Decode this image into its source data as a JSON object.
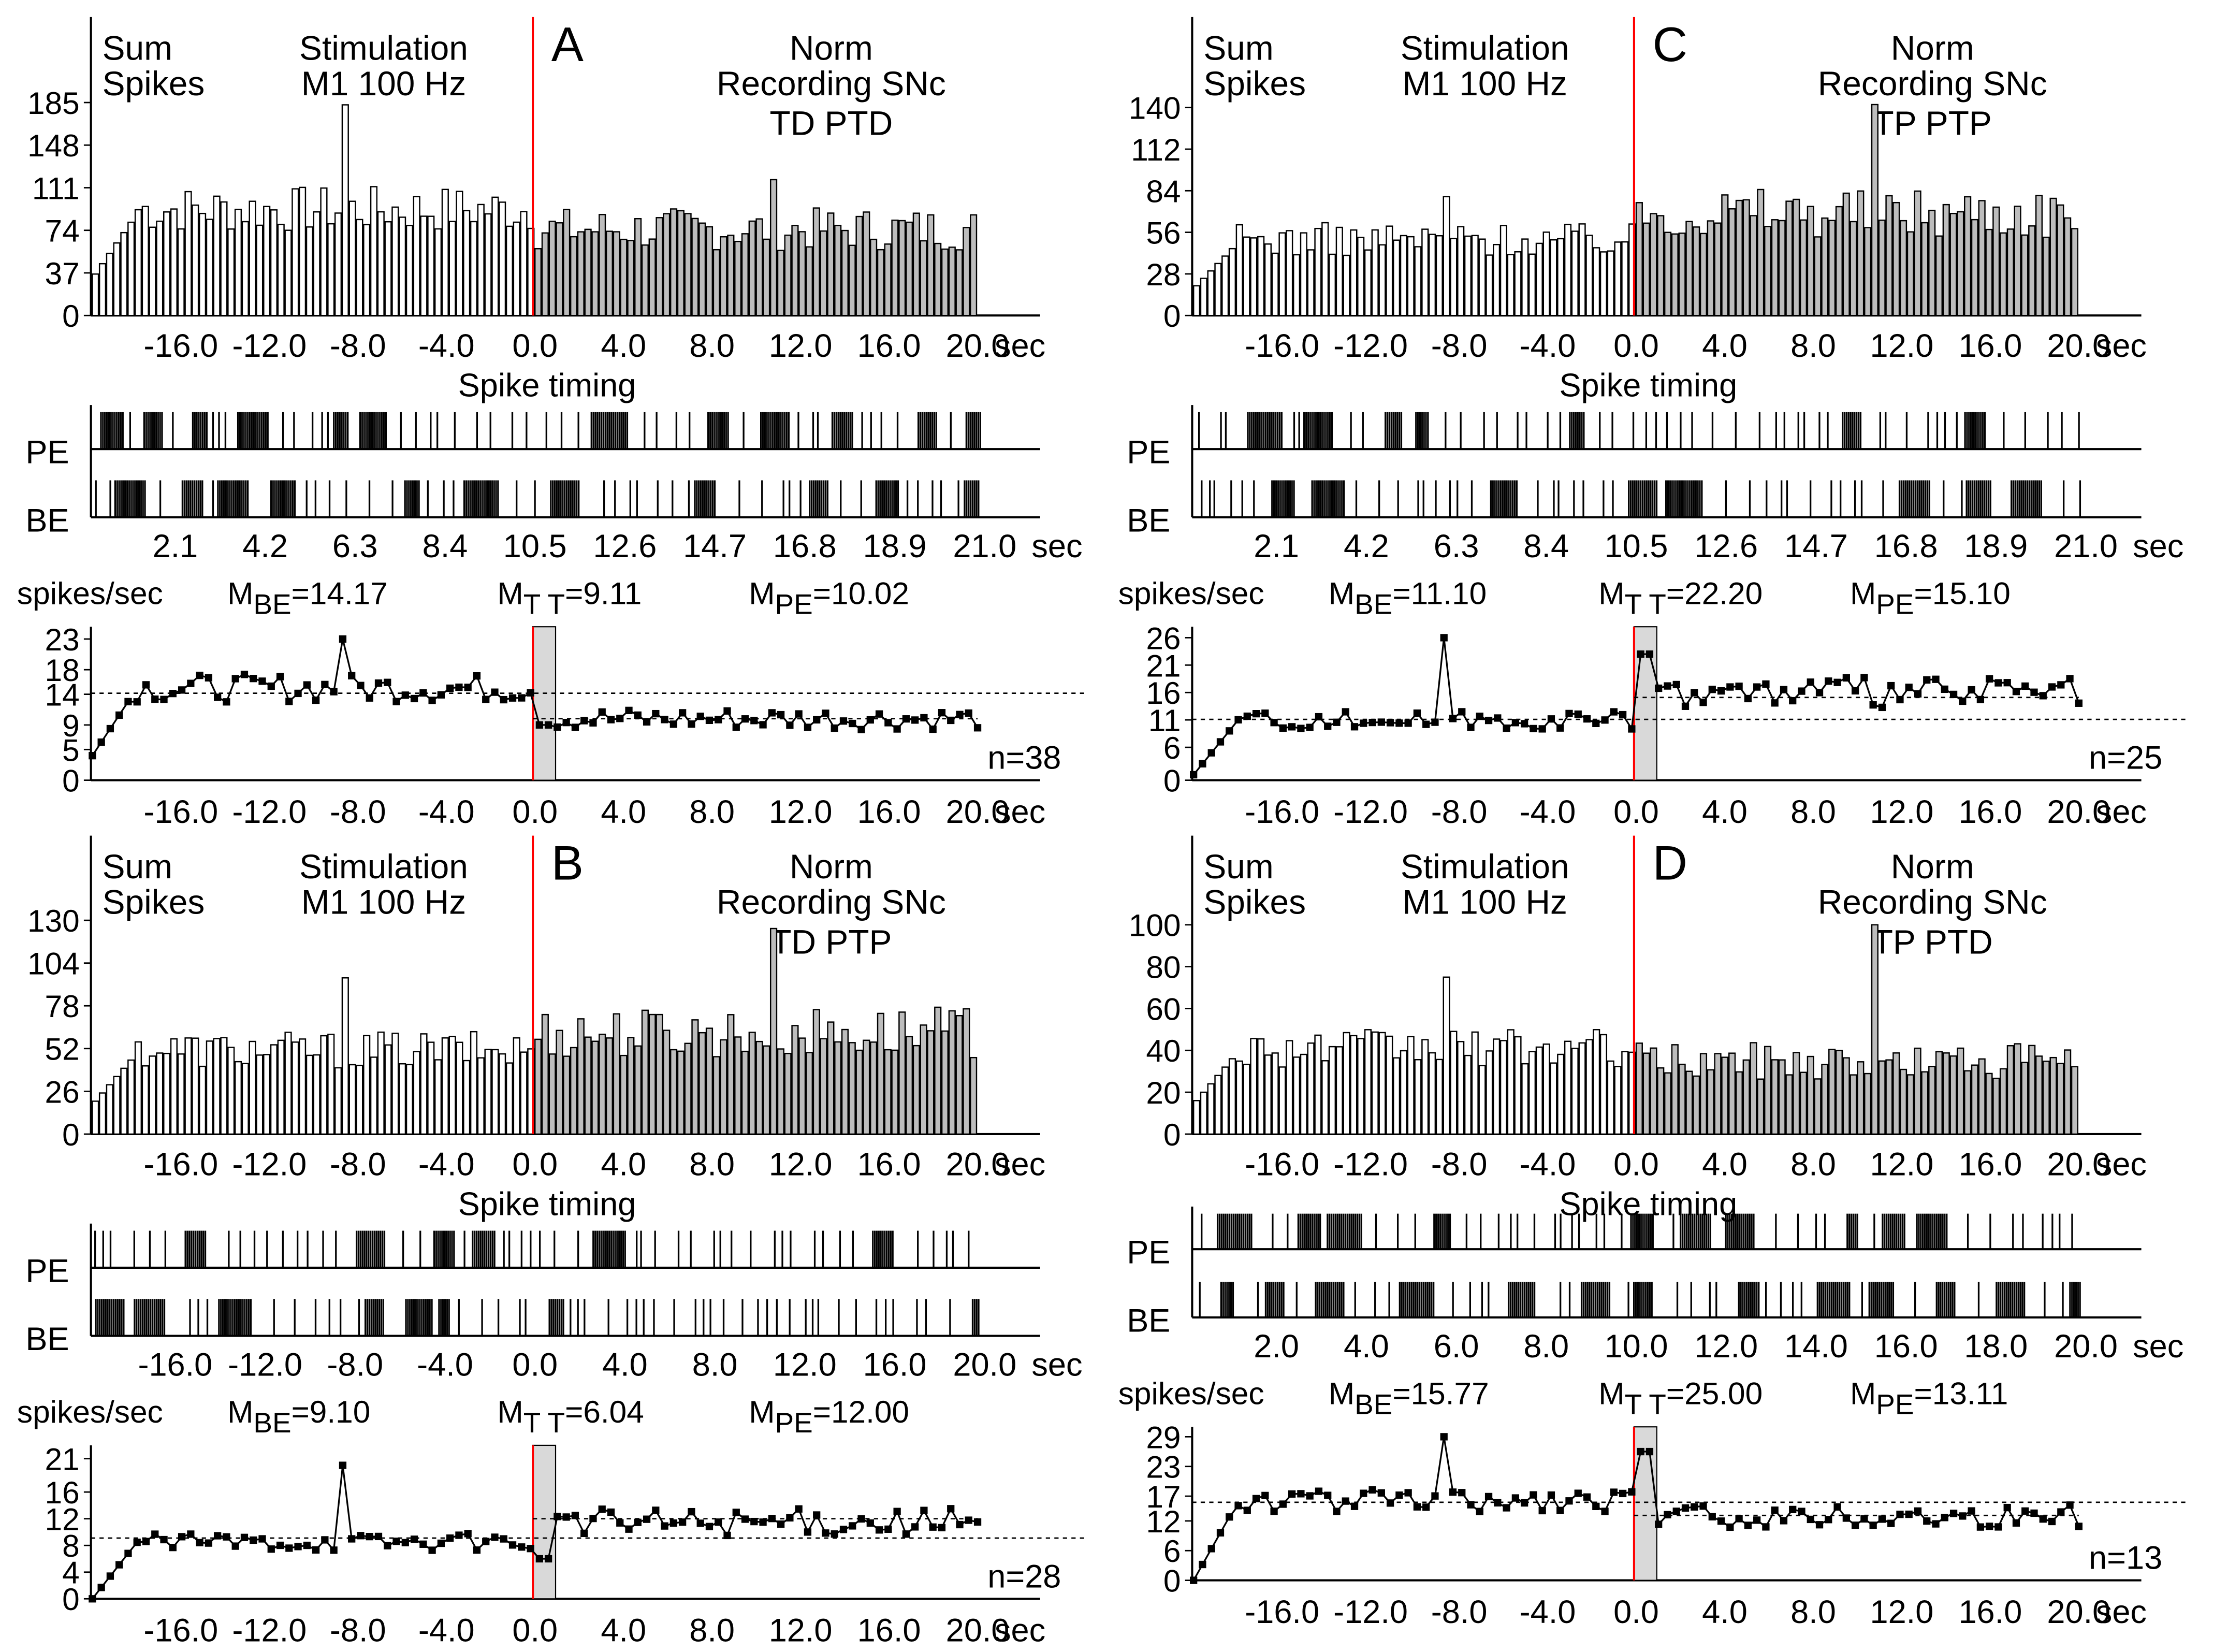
{
  "units": {
    "sec": "sec",
    "spikes_per_sec": "spikes/sec",
    "spike_timing": "Spike timing",
    "pe": "PE",
    "be": "BE"
  },
  "header": {
    "sum": "Sum",
    "spikes": "Spikes",
    "stimulation": "Stimulation",
    "stim_site": "M1 100 Hz",
    "norm": "Norm",
    "recording": "Recording SNc"
  },
  "colors": {
    "stimulus_line": "#ff0000",
    "bars": "#000000",
    "shade": "#d9d9d9"
  },
  "panels": [
    {
      "letter": "A",
      "condition": "TD PTD",
      "stats": {
        "be": "M",
        "be_sub": "BE",
        "be_val": "=14.17",
        "tt": "M",
        "tt_sub": "T T",
        "tt_val": "=9.11",
        "pe": "M",
        "pe_sub": "PE",
        "pe_val": "=10.02"
      },
      "n_label": "n=38",
      "histogram": {
        "yticks": [
          "0",
          "37",
          "74",
          "111",
          "148",
          "185"
        ],
        "ymax": 200,
        "xticks": [
          "-16.0",
          "-12.0",
          "-8.0",
          "-4.0",
          "0.0",
          "4.0",
          "8.0",
          "12.0",
          "16.0",
          "20.0"
        ],
        "pre_level": 90,
        "pre_peak": 183,
        "post_level": 75,
        "post_peak": 118
      },
      "raster": {
        "xticks": [
          "2.1",
          "4.2",
          "6.3",
          "8.4",
          "10.5",
          "12.6",
          "14.7",
          "16.8",
          "18.9",
          "21.0"
        ]
      },
      "rate": {
        "yticks": [
          "0",
          "5",
          "9",
          "14",
          "18",
          "23"
        ],
        "ymax": 25,
        "xticks": [
          "-16.0",
          "-12.0",
          "-8.0",
          "-4.0",
          "0.0",
          "4.0",
          "8.0",
          "12.0",
          "16.0",
          "20.0"
        ],
        "mean_pre": 14.17,
        "mean_post": 10.02,
        "start": 4,
        "pre_level": 15,
        "post_level": 10,
        "peak": 23,
        "tt_level": 9
      }
    },
    {
      "letter": "B",
      "condition": "TD PTP",
      "stats": {
        "be": "M",
        "be_sub": "BE",
        "be_val": "=9.10",
        "tt": "M",
        "tt_sub": "T T",
        "tt_val": "=6.04",
        "pe": "M",
        "pe_sub": "PE",
        "pe_val": "=12.00"
      },
      "n_label": "n=28",
      "histogram": {
        "yticks": [
          "0",
          "26",
          "52",
          "78",
          "104",
          "130"
        ],
        "ymax": 140,
        "xticks": [
          "-16.0",
          "-12.0",
          "-8.0",
          "-4.0",
          "0.0",
          "4.0",
          "8.0",
          "12.0",
          "16.0",
          "20.0"
        ],
        "pre_level": 50,
        "pre_peak": 95,
        "post_level": 62,
        "post_peak": 125
      },
      "raster": {
        "xticks": [
          "-16.0",
          "-12.0",
          "-8.0",
          "-4.0",
          "0.0",
          "4.0",
          "8.0",
          "12.0",
          "16.0",
          "20.0"
        ]
      },
      "rate": {
        "yticks": [
          "0",
          "4",
          "8",
          "12",
          "16",
          "21"
        ],
        "ymax": 23,
        "xticks": [
          "-16.0",
          "-12.0",
          "-8.0",
          "-4.0",
          "0.0",
          "4.0",
          "8.0",
          "12.0",
          "16.0",
          "20.0"
        ],
        "mean_pre": 9.1,
        "mean_post": 12.0,
        "start": 0,
        "pre_level": 8.5,
        "post_level": 11.5,
        "peak": 20,
        "tt_level": 6
      }
    },
    {
      "letter": "C",
      "condition": "TP PTP",
      "stats": {
        "be": "M",
        "be_sub": "BE",
        "be_val": "=11.10",
        "tt": "M",
        "tt_sub": "T T",
        "tt_val": "=22.20",
        "pe": "M",
        "pe_sub": "PE",
        "pe_val": "=15.10"
      },
      "n_label": "n=25",
      "histogram": {
        "yticks": [
          "0",
          "28",
          "56",
          "84",
          "112",
          "140"
        ],
        "ymax": 155,
        "xticks": [
          "-16.0",
          "-12.0",
          "-8.0",
          "-4.0",
          "0.0",
          "4.0",
          "8.0",
          "12.0",
          "16.0",
          "20.0"
        ],
        "pre_level": 50,
        "pre_peak": 80,
        "post_level": 70,
        "post_peak": 142
      },
      "raster": {
        "xticks": [
          "2.1",
          "4.2",
          "6.3",
          "8.4",
          "10.5",
          "12.6",
          "14.7",
          "16.8",
          "18.9",
          "21.0"
        ]
      },
      "rate": {
        "yticks": [
          "0",
          "6",
          "11",
          "16",
          "21",
          "26"
        ],
        "ymax": 28,
        "xticks": [
          "-16.0",
          "-12.0",
          "-8.0",
          "-4.0",
          "0.0",
          "4.0",
          "8.0",
          "12.0",
          "16.0",
          "20.0"
        ],
        "mean_pre": 11.1,
        "mean_post": 15.1,
        "start": 1,
        "pre_level": 11,
        "post_level": 16,
        "peak": 26,
        "tt_level": 23
      }
    },
    {
      "letter": "D",
      "condition": "TP PTD",
      "stats": {
        "be": "M",
        "be_sub": "BE",
        "be_val": "=15.77",
        "tt": "M",
        "tt_sub": "T T",
        "tt_val": "=25.00",
        "pe": "M",
        "pe_sub": "PE",
        "pe_val": "=13.11"
      },
      "n_label": "n=13",
      "histogram": {
        "yticks": [
          "0",
          "20",
          "40",
          "60",
          "80",
          "100"
        ],
        "ymax": 110,
        "xticks": [
          "-16.0",
          "-12.0",
          "-8.0",
          "-4.0",
          "0.0",
          "4.0",
          "8.0",
          "12.0",
          "16.0",
          "20.0"
        ],
        "pre_level": 40,
        "pre_peak": 75,
        "post_level": 35,
        "post_peak": 100
      },
      "raster": {
        "xticks": [
          "2.0",
          "4.0",
          "6.0",
          "8.0",
          "10.0",
          "12.0",
          "14.0",
          "16.0",
          "18.0",
          "20.0"
        ]
      },
      "rate": {
        "yticks": [
          "0",
          "6",
          "12",
          "17",
          "23",
          "29"
        ],
        "ymax": 31,
        "xticks": [
          "-16.0",
          "-12.0",
          "-8.0",
          "-4.0",
          "0.0",
          "4.0",
          "8.0",
          "12.0",
          "16.0",
          "20.0"
        ],
        "mean_pre": 15.77,
        "mean_post": 13.11,
        "start": 0,
        "pre_level": 16,
        "post_level": 13,
        "peak": 29,
        "tt_level": 26
      }
    }
  ],
  "chart_data": [
    {
      "type": "bar",
      "panel": "A",
      "title": "",
      "xlabel": "sec",
      "ylabel": "",
      "x_range": [
        -20,
        20
      ],
      "ylim": [
        0,
        185
      ],
      "series": [
        {
          "values_summary": "pre-stimulus bins approx 40-183, post-stimulus bins approx 55-118"
        }
      ]
    },
    {
      "type": "line",
      "panel": "A",
      "ylabel": "spikes/sec",
      "x_range": [
        -20,
        20
      ],
      "ylim": [
        0,
        23
      ],
      "means": {
        "BE": 14.17,
        "TT": 9.11,
        "PE": 10.02
      }
    },
    {
      "type": "bar",
      "panel": "B",
      "xlabel": "sec",
      "x_range": [
        -20,
        20
      ],
      "ylim": [
        0,
        130
      ]
    },
    {
      "type": "line",
      "panel": "B",
      "ylabel": "spikes/sec",
      "x_range": [
        -20,
        20
      ],
      "ylim": [
        0,
        21
      ],
      "means": {
        "BE": 9.1,
        "TT": 6.04,
        "PE": 12.0
      }
    },
    {
      "type": "bar",
      "panel": "C",
      "xlabel": "sec",
      "x_range": [
        -20,
        20
      ],
      "ylim": [
        0,
        140
      ]
    },
    {
      "type": "line",
      "panel": "C",
      "ylabel": "spikes/sec",
      "x_range": [
        -20,
        20
      ],
      "ylim": [
        0,
        26
      ],
      "means": {
        "BE": 11.1,
        "TT": 22.2,
        "PE": 15.1
      }
    },
    {
      "type": "bar",
      "panel": "D",
      "xlabel": "sec",
      "x_range": [
        -20,
        20
      ],
      "ylim": [
        0,
        100
      ]
    },
    {
      "type": "line",
      "panel": "D",
      "ylabel": "spikes/sec",
      "x_range": [
        -20,
        20
      ],
      "ylim": [
        0,
        29
      ],
      "means": {
        "BE": 15.77,
        "TT": 25.0,
        "PE": 13.11
      }
    }
  ]
}
